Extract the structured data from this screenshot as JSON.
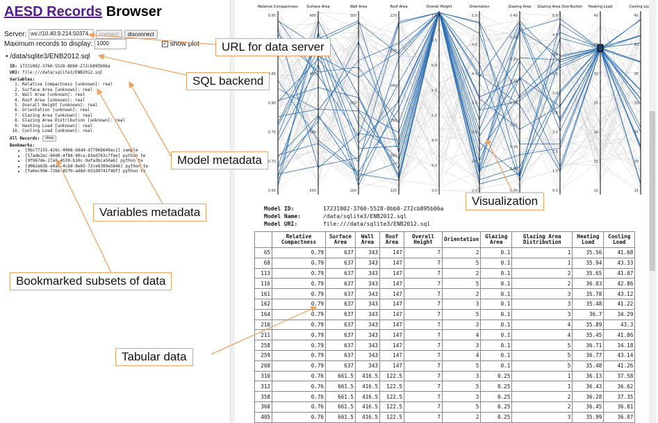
{
  "header": {
    "title_link": "AESD Records",
    "title_rest": "Browser"
  },
  "server": {
    "label": "Server:",
    "value": "ws://10.40.9.214:50374",
    "connect": "connect",
    "disconnect": "disconnect"
  },
  "maxrec": {
    "label": "Maximum records to display:",
    "value": "1000",
    "show_plot": "show plot"
  },
  "model": {
    "path": "/data/sqlite3/ENB2012.sql",
    "id_label": "ID:",
    "id": "17231002-3760-5528-8bb0-272cb895b06a",
    "uri_label": "URI:",
    "uri": "file:///data/sqlite3/ENB2012.sql",
    "variables_label": "Variables:",
    "variables": [
      "Relative Compactness [unknown]: real",
      "Surface Area [unknown]: real",
      "Wall Area [unknown]: real",
      "Roof Area [unknown]: real",
      "Overall Height [unknown]: real",
      "Orientation [unknown]: real",
      "Glazing Area [unknown]: real",
      "Glazing Area Distribution [unknown]: real",
      "Heating Load [unknown]: real",
      "Cooling Load [unknown]: real"
    ],
    "all_records_label": "All Records:",
    "show_label": "show",
    "bookmarks_label": "Bookmarks:",
    "bookmarks": [
      "[0bc77155-426c-4068-b8d4-d7796b649ac1] sample",
      "[57ade2ec-60d0-4f84-90ca-83ed763c7fee] python te",
      "[9f967de-27a9-4539-b10c-9afa3bca50a6] python te",
      "[d082a83b-e0ac-4cbd-8e65-72ce6389e5846] python te",
      "[fa0ec996-72b6-45f0-ad8d-031d0741f4bf] python te"
    ]
  },
  "plot": {
    "axes": [
      "Relative Compactness",
      "Surface Area",
      "Wall Area",
      "Roof Area",
      "Overall Height",
      "Orientation",
      "Glazing Area",
      "Glazing Area Distribution",
      "Heating Load",
      "Cooling Load"
    ],
    "ticks": [
      [
        "0.95",
        "0.90",
        "0.85",
        "0.80",
        "0.75",
        "0.70",
        "0.65"
      ],
      [
        "400",
        "450",
        "500",
        "550"
      ],
      [
        "300",
        "250",
        "200"
      ],
      [
        "220",
        "200",
        "180",
        "160",
        "140",
        "120"
      ],
      [
        "7.0",
        "6.5",
        "6.0",
        "5.5",
        "5.0",
        "4.5",
        "4.0",
        "3.5"
      ],
      [
        "5.0",
        "4.5",
        "4.0",
        "3.5",
        "3.0",
        "2.5",
        "2.0"
      ],
      [
        "0.40",
        "0.35",
        "0.30",
        "0.25",
        "0.20",
        "0.15",
        "0.10",
        "0.05",
        "0.00"
      ],
      [
        "5.0",
        "4.5",
        "4.0",
        "3.5",
        "3.0",
        "2.5",
        "2.0",
        "1.5",
        "1.0",
        "0.5"
      ],
      [
        "40",
        "35",
        "30",
        "25",
        "20",
        "15",
        "10"
      ],
      [
        "45",
        "40",
        "35",
        "30",
        "25",
        "20",
        "15"
      ]
    ]
  },
  "info": {
    "id_label": "Model ID:",
    "id": "17231002-3760-5528-8bb0-272cb895b06a",
    "name_label": "Model Name:",
    "name": "/data/sqlite3/ENB2012.sql",
    "uri_label": "Model URI:",
    "uri": "file:///data/sqlite3/ENB2012.sql"
  },
  "table": {
    "headers": [
      "",
      "Relative Compactness",
      "Surface Area",
      "Wall Area",
      "Roof Area",
      "Overall Height",
      "Orientation",
      "Glazing Area",
      "Glazing Area Distribution",
      "Heating Load",
      "Cooling Load"
    ],
    "rows": [
      [
        "65",
        "0.79",
        "637",
        "343",
        "147",
        "7",
        "2",
        "0.1",
        "1",
        "35.56",
        "41.68"
      ],
      [
        "68",
        "0.79",
        "637",
        "343",
        "147",
        "7",
        "5",
        "0.1",
        "1",
        "35.94",
        "43.33"
      ],
      [
        "113",
        "0.79",
        "637",
        "343",
        "147",
        "7",
        "2",
        "0.1",
        "2",
        "35.65",
        "41.07"
      ],
      [
        "116",
        "0.79",
        "637",
        "343",
        "147",
        "7",
        "5",
        "0.1",
        "2",
        "36.03",
        "42.86"
      ],
      [
        "161",
        "0.79",
        "637",
        "343",
        "147",
        "7",
        "2",
        "0.1",
        "3",
        "35.78",
        "43.12"
      ],
      [
        "162",
        "0.79",
        "637",
        "343",
        "147",
        "7",
        "3",
        "0.1",
        "3",
        "35.48",
        "41.22"
      ],
      [
        "164",
        "0.79",
        "637",
        "343",
        "147",
        "7",
        "5",
        "0.1",
        "3",
        "36.7",
        "34.29"
      ],
      [
        "210",
        "0.79",
        "637",
        "343",
        "147",
        "7",
        "3",
        "0.1",
        "4",
        "35.89",
        "43.3"
      ],
      [
        "211",
        "0.79",
        "637",
        "343",
        "147",
        "7",
        "4",
        "0.1",
        "4",
        "35.45",
        "41.86"
      ],
      [
        "258",
        "0.79",
        "637",
        "343",
        "147",
        "7",
        "3",
        "0.1",
        "5",
        "36.71",
        "34.18"
      ],
      [
        "259",
        "0.79",
        "637",
        "343",
        "147",
        "7",
        "4",
        "0.1",
        "5",
        "36.77",
        "43.14"
      ],
      [
        "260",
        "0.79",
        "637",
        "343",
        "147",
        "7",
        "5",
        "0.1",
        "5",
        "35.48",
        "41.26"
      ],
      [
        "310",
        "0.76",
        "661.5",
        "416.5",
        "122.5",
        "7",
        "3",
        "0.25",
        "1",
        "36.13",
        "37.58"
      ],
      [
        "312",
        "0.76",
        "661.5",
        "416.5",
        "122.5",
        "7",
        "5",
        "0.25",
        "1",
        "36.43",
        "36.62"
      ],
      [
        "358",
        "0.76",
        "661.5",
        "416.5",
        "122.5",
        "7",
        "3",
        "0.25",
        "2",
        "36.28",
        "37.35"
      ],
      [
        "360",
        "0.76",
        "661.5",
        "416.5",
        "122.5",
        "7",
        "5",
        "0.25",
        "2",
        "36.45",
        "36.81"
      ],
      [
        "405",
        "0.76",
        "661.5",
        "416.5",
        "122.5",
        "7",
        "2",
        "0.25",
        "3",
        "35.99",
        "36.07"
      ]
    ]
  },
  "callouts": {
    "url": "URL for data server",
    "sql": "SQL backend",
    "model_meta": "Model metadata",
    "visual": "Visualization",
    "vars": "Variables metadata",
    "bookmarks": "Bookmarked subsets of data",
    "tabular": "Tabular data"
  },
  "colors": {
    "accent": "#f0a262",
    "link": "#551a8b",
    "line_sel": "#2f6fb2",
    "line_bg": "#cfcfcf"
  }
}
